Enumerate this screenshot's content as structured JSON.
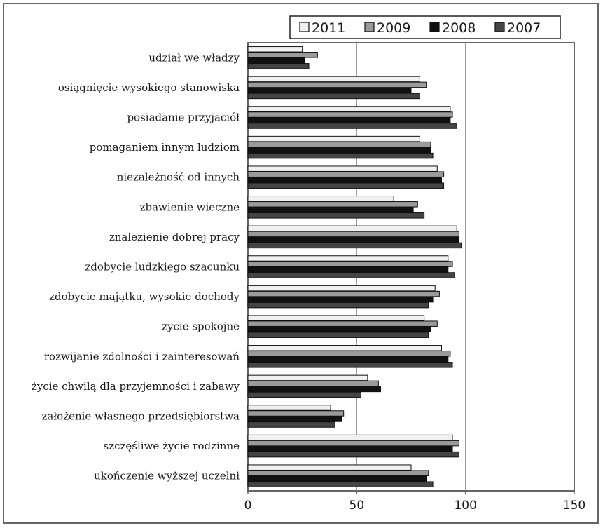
{
  "chart_data": {
    "type": "bar",
    "orientation": "horizontal",
    "title": "",
    "xlabel": "",
    "ylabel": "",
    "xlim": [
      0,
      150
    ],
    "x_ticks": [
      "0",
      "50",
      "100",
      "150"
    ],
    "grid": "vertical",
    "legend_position": "top-right",
    "categories": [
      "udział we władzy",
      "osiągnięcie wysokiego stanowiska",
      "posiadanie przyjaciół",
      "pomaganiem innym ludziom",
      "niezależność od innych",
      "zbawienie wieczne",
      "znalezienie dobrej pracy",
      "zdobycie ludzkiego szacunku",
      "zdobycie majątku, wysokie dochody",
      "życie spokojne",
      "rozwijanie zdolności i zainteresowań",
      "życie chwilą dla przyjemności i zabawy",
      "założenie własnego przedsiębiorstwa",
      "szczęśliwe życie rodzinne",
      "ukończenie wyższej uczelni"
    ],
    "series": [
      {
        "name": "2011",
        "color": "#f0f0f0",
        "values": [
          25,
          79,
          93,
          79,
          87,
          67,
          96,
          92,
          86,
          81,
          89,
          55,
          38,
          94,
          75
        ]
      },
      {
        "name": "2009",
        "color": "#9a9a9a",
        "values": [
          32,
          82,
          94,
          84,
          90,
          78,
          97,
          94,
          88,
          87,
          93,
          60,
          44,
          97,
          83
        ]
      },
      {
        "name": "2008",
        "color": "#111111",
        "values": [
          26,
          75,
          93,
          84,
          89,
          76,
          97,
          92,
          85,
          84,
          92,
          61,
          43,
          94,
          82
        ]
      },
      {
        "name": "2007",
        "color": "#444444",
        "values": [
          28,
          79,
          96,
          85,
          90,
          81,
          98,
          95,
          83,
          83,
          94,
          52,
          40,
          97,
          85
        ]
      }
    ]
  }
}
